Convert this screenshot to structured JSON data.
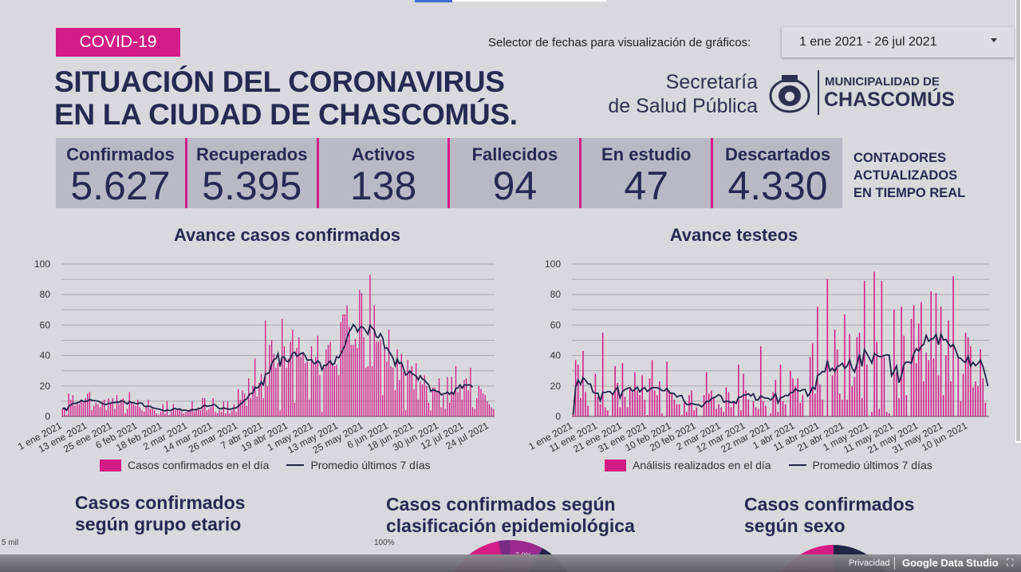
{
  "header": {
    "badge": "COVID-19",
    "title_line1": "SITUACIÓN DEL CORONAVIRUS",
    "title_line2": "EN LA CIUDAD DE CHASCOMÚS.",
    "date_selector_label": "Selector de fechas para visualización de gráficos:",
    "date_selector_value": "1 ene 2021 - 26 jul 2021",
    "secretaria_line1": "Secretaría",
    "secretaria_line2": "de Salud Pública",
    "muni_line1": "MUNICIPALIDAD DE",
    "muni_line2": "CHASCOMÚS"
  },
  "kpis": [
    {
      "label": "Confirmados",
      "value": "5.627"
    },
    {
      "label": "Recuperados",
      "value": "5.395"
    },
    {
      "label": "Activos",
      "value": "138"
    },
    {
      "label": "Fallecidos",
      "value": "94"
    },
    {
      "label": "En estudio",
      "value": "47"
    },
    {
      "label": "Descartados",
      "value": "4.330"
    }
  ],
  "counters_note": [
    "CONTADORES",
    "ACTUALIZADOS",
    "EN TIEMPO REAL"
  ],
  "colors": {
    "accent": "#d41c86",
    "navy": "#22254a",
    "background": "#d8d8dd"
  },
  "chart_data": [
    {
      "type": "bar",
      "title": "Avance casos confirmados",
      "ylim": [
        0,
        100
      ],
      "yticks": [
        0,
        20,
        40,
        60,
        80,
        100
      ],
      "grid": true,
      "legend_placement": "bottom",
      "x_start": "1 ene 2021",
      "x_end": "26 jul 2021",
      "xtick_labels": [
        "1 ene 2021",
        "13 ene 2021",
        "25 ene 2021",
        "6 feb 2021",
        "18 feb 2021",
        "2 mar 2021",
        "14 mar 2021",
        "26 mar 2021",
        "7 abr 2021",
        "19 abr 2021",
        "1 may 2021",
        "13 may 2021",
        "25 may 2021",
        "6 jun 2021",
        "18 jun 2021",
        "30 jun 2021",
        "12 jul 2021",
        "24 jul 2021"
      ],
      "avg_end": "16 jul 2021",
      "series": [
        {
          "name": "Casos confirmados en el día",
          "type": "bar",
          "values": [
            5,
            6,
            1,
            15,
            11,
            14,
            7,
            9,
            8,
            10,
            9,
            12,
            15,
            16,
            4,
            7,
            9,
            8,
            6,
            10,
            11,
            4,
            12,
            9,
            12,
            5,
            14,
            8,
            11,
            12,
            2,
            5,
            16,
            9,
            8,
            7,
            11,
            6,
            4,
            3,
            6,
            11,
            5,
            5,
            4,
            2,
            1,
            3,
            8,
            2,
            10,
            1,
            3,
            8,
            4,
            4,
            5,
            3,
            2,
            3,
            4,
            5,
            10,
            3,
            5,
            6,
            4,
            12,
            12,
            4,
            5,
            6,
            12,
            3,
            2,
            4,
            3,
            10,
            2,
            10,
            2,
            4,
            8,
            3,
            18,
            11,
            17,
            15,
            7,
            25,
            12,
            20,
            38,
            13,
            22,
            28,
            12,
            63,
            20,
            47,
            50,
            41,
            32,
            35,
            4,
            64,
            46,
            32,
            38,
            49,
            57,
            9,
            45,
            52,
            39,
            42,
            35,
            36,
            11,
            46,
            35,
            39,
            53,
            27,
            3,
            32,
            44,
            47,
            49,
            35,
            33,
            34,
            27,
            62,
            67,
            67,
            73,
            59,
            47,
            47,
            51,
            45,
            83,
            81,
            52,
            32,
            33,
            93,
            33,
            73,
            49,
            49,
            50,
            14,
            45,
            36,
            57,
            33,
            32,
            17,
            44,
            24,
            41,
            29,
            4,
            37,
            30,
            33,
            18,
            35,
            11,
            23,
            21,
            27,
            20,
            9,
            4,
            19,
            19,
            17,
            25,
            6,
            14,
            5,
            26,
            9,
            26,
            16,
            33,
            16,
            19,
            11,
            24,
            25,
            17,
            32,
            6,
            5,
            12,
            20,
            18,
            15,
            14,
            10,
            8,
            6,
            5
          ]
        },
        {
          "name": "Promedio últimos 7 días",
          "type": "line",
          "method": "7-day trailing mean"
        }
      ]
    },
    {
      "type": "bar",
      "title": "Avance testeos",
      "ylim": [
        0,
        100
      ],
      "yticks": [
        0,
        20,
        40,
        60,
        80,
        100
      ],
      "grid": true,
      "legend_placement": "bottom",
      "x_start": "1 ene 2021",
      "xtick_labels": [
        "1 ene 2021",
        "11 ene 2021",
        "21 ene 2021",
        "31 ene 2021",
        "10 feb 2021",
        "20 feb 2021",
        "2 mar 2021",
        "12 mar 2021",
        "22 mar 2021",
        "1 abr 2021",
        "11 abr 2021",
        "21 abr 2021",
        "1 may 2021",
        "11 may 2021",
        "21 may 2021",
        "31 may 2021",
        "10 jun 2021"
      ],
      "series": [
        {
          "name": "Análisis realizados en el día",
          "type": "bar",
          "values": [
            1,
            37,
            34,
            12,
            43,
            16,
            7,
            0,
            0,
            28,
            13,
            8,
            55,
            6,
            4,
            0,
            14,
            33,
            22,
            6,
            35,
            13,
            6,
            18,
            16,
            29,
            17,
            14,
            27,
            11,
            1,
            25,
            37,
            17,
            14,
            23,
            2,
            0,
            36,
            17,
            15,
            11,
            8,
            8,
            1,
            9,
            3,
            14,
            17,
            4,
            6,
            0,
            0,
            14,
            29,
            15,
            17,
            12,
            5,
            8,
            6,
            3,
            19,
            16,
            6,
            10,
            0,
            34,
            4,
            28,
            17,
            11,
            0,
            10,
            6,
            5,
            46,
            10,
            7,
            0,
            2,
            16,
            24,
            3,
            34,
            10,
            8,
            0,
            30,
            25,
            20,
            25,
            9,
            14,
            0,
            0,
            39,
            48,
            15,
            72,
            21,
            11,
            0,
            90,
            0,
            27,
            57,
            44,
            15,
            11,
            67,
            11,
            54,
            20,
            26,
            52,
            55,
            12,
            89,
            34,
            0,
            3,
            95,
            49,
            5,
            89,
            39,
            3,
            2,
            0,
            70,
            29,
            12,
            72,
            53,
            14,
            0,
            64,
            73,
            35,
            61,
            75,
            23,
            42,
            37,
            82,
            38,
            81,
            27,
            72,
            14,
            40,
            63,
            23,
            92,
            0,
            39,
            10,
            28,
            55,
            52,
            46,
            19,
            23,
            20,
            44,
            25,
            9,
            0
          ]
        },
        {
          "name": "Promedio últimos 7 días",
          "type": "line",
          "method": "7-day trailing mean"
        }
      ]
    }
  ],
  "sections": [
    {
      "line1": "Casos confirmados",
      "line2": "según grupo etario",
      "axis_top": "5 mil"
    },
    {
      "line1": "Casos confirmados según",
      "line2": "clasificación epidemiológica",
      "axis_top": "100%",
      "slice_label": "7,9%"
    },
    {
      "line1": "Casos confirmados",
      "line2": "según sexo"
    }
  ],
  "footer": {
    "privacy": "Privacidad",
    "brand": "Google Data Studio"
  }
}
